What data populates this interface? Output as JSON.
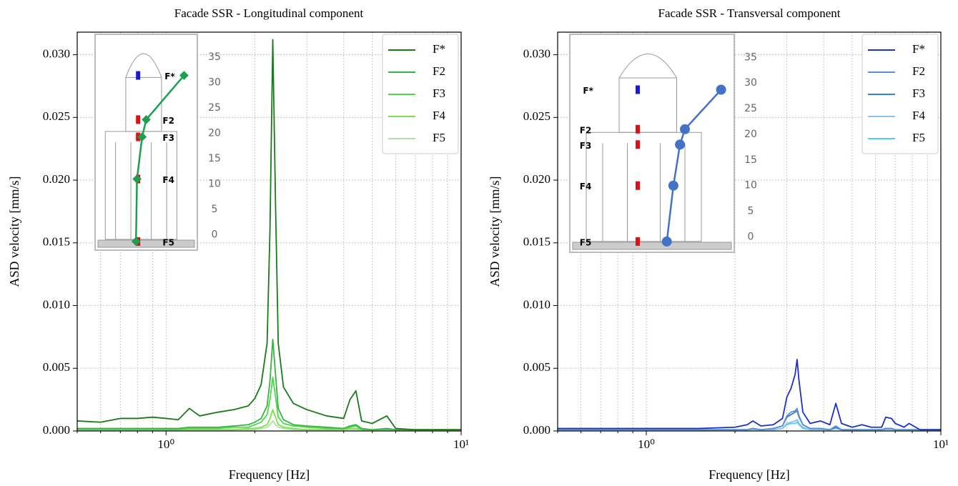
{
  "chart_data": [
    {
      "type": "line",
      "title": "Facade SSR - Longitudinal component",
      "xlabel": "Frequency [Hz]",
      "ylabel": "ASD velocity [mm/s]",
      "xscale": "log",
      "xlim": [
        0.5,
        10
      ],
      "xticks": [
        {
          "value": 1,
          "label": "10⁰"
        },
        {
          "value": 10,
          "label": "10¹"
        }
      ],
      "xminorticks": [
        0.5,
        0.6,
        0.7,
        0.8,
        0.9,
        2,
        3,
        4,
        5,
        6,
        7,
        8,
        9
      ],
      "ylim": [
        0,
        0.0318
      ],
      "yticks": [
        {
          "value": 0,
          "label": "0.000"
        },
        {
          "value": 0.005,
          "label": "0.005"
        },
        {
          "value": 0.01,
          "label": "0.010"
        },
        {
          "value": 0.015,
          "label": "0.015"
        },
        {
          "value": 0.02,
          "label": "0.020"
        },
        {
          "value": 0.025,
          "label": "0.025"
        },
        {
          "value": 0.03,
          "label": "0.030"
        }
      ],
      "grid": true,
      "legend": "upper right",
      "x": [
        0.5,
        0.6,
        0.7,
        0.8,
        0.9,
        1.0,
        1.1,
        1.2,
        1.3,
        1.5,
        1.7,
        1.9,
        2.0,
        2.1,
        2.2,
        2.25,
        2.3,
        2.35,
        2.4,
        2.5,
        2.7,
        3.0,
        3.5,
        4.0,
        4.2,
        4.4,
        4.6,
        5.0,
        5.6,
        6.0,
        7,
        8,
        10
      ],
      "series": [
        {
          "name": "F*",
          "color": "#1a7a1a",
          "values": [
            0.0008,
            0.0007,
            0.001,
            0.001,
            0.0011,
            0.001,
            0.0009,
            0.0018,
            0.0012,
            0.0015,
            0.0017,
            0.002,
            0.0026,
            0.0037,
            0.007,
            0.016,
            0.0312,
            0.018,
            0.007,
            0.0035,
            0.0022,
            0.0017,
            0.0012,
            0.001,
            0.0025,
            0.0032,
            0.0008,
            0.0006,
            0.0012,
            0.0002,
            0.0001,
            0.0001,
            0.0001
          ]
        },
        {
          "name": "F2",
          "color": "#3cb043",
          "values": [
            0.0002,
            0.0002,
            0.0002,
            0.0002,
            0.0002,
            0.0002,
            0.0002,
            0.0003,
            0.0003,
            0.0003,
            0.0004,
            0.0005,
            0.0007,
            0.001,
            0.002,
            0.004,
            0.0073,
            0.0045,
            0.0018,
            0.0009,
            0.0005,
            0.0004,
            0.0003,
            0.0002,
            0.0004,
            0.0005,
            0.0002,
            0.0001,
            0.0002,
            0.0001,
            0.0001,
            0.0001,
            0.0001
          ]
        },
        {
          "name": "F3",
          "color": "#4cd94c",
          "values": [
            0.0001,
            0.0001,
            0.0001,
            0.0001,
            0.0001,
            0.0001,
            0.0001,
            0.0002,
            0.0002,
            0.0002,
            0.0003,
            0.0003,
            0.0005,
            0.0007,
            0.0013,
            0.0025,
            0.0043,
            0.0027,
            0.0011,
            0.0006,
            0.0004,
            0.0003,
            0.0002,
            0.0002,
            0.0003,
            0.0004,
            0.0001,
            0.0001,
            0.0001,
            0.0001,
            0.0001,
            0.0001,
            0.0001
          ]
        },
        {
          "name": "F4",
          "color": "#7ee04a",
          "values": [
            0.0001,
            0.0001,
            0.0001,
            0.0001,
            0.0001,
            0.0001,
            0.0001,
            0.0001,
            0.0001,
            0.0001,
            0.0001,
            0.0002,
            0.0002,
            0.0003,
            0.0005,
            0.001,
            0.0017,
            0.0011,
            0.0005,
            0.0003,
            0.0002,
            0.0001,
            0.0001,
            0.0001,
            0.0002,
            0.0002,
            0.0001,
            0.0001,
            0.0001,
            0.0001,
            0.0001,
            0.0001,
            0.0001
          ]
        },
        {
          "name": "F5",
          "color": "#a8e6a0",
          "values": [
            0.0001,
            0.0001,
            0.0001,
            0.0001,
            0.0001,
            0.0001,
            0.0001,
            0.0001,
            0.0001,
            0.0001,
            0.0001,
            0.0001,
            0.0001,
            0.0002,
            0.0003,
            0.0005,
            0.0008,
            0.0005,
            0.0003,
            0.0002,
            0.0001,
            0.0001,
            0.0001,
            0.0001,
            0.0001,
            0.0001,
            0.0001,
            0.0001,
            0.0001,
            0.0001,
            0.0001,
            0.0001,
            0.0001
          ]
        }
      ],
      "inset": {
        "labels": [
          "F*",
          "F2",
          "F3",
          "F4",
          "F5"
        ],
        "label_colors": [
          "#1a1ad0",
          "#e01010",
          "#e01010",
          "#e01010",
          "#e01010"
        ],
        "ylim": [
          -3,
          39.5
        ],
        "yticks": [
          0,
          5,
          10,
          15,
          20,
          25,
          30,
          35
        ],
        "xlim": [
          0,
          1
        ],
        "mode_shape": {
          "color": "#1aa050",
          "marker": "diamond",
          "x": [
            0.87,
            0.5,
            0.46,
            0.41,
            0.4
          ],
          "y": [
            31.4,
            22.7,
            19.3,
            11,
            -1.3
          ]
        }
      }
    },
    {
      "type": "line",
      "title": "Facade SSR - Transversal component",
      "xlabel": "Frequency [Hz]",
      "ylabel": "ASD velocity [mm/s]",
      "xscale": "log",
      "xlim": [
        0.5,
        10
      ],
      "xticks": [
        {
          "value": 1,
          "label": "10⁰"
        },
        {
          "value": 10,
          "label": "10¹"
        }
      ],
      "xminorticks": [
        0.5,
        0.6,
        0.7,
        0.8,
        0.9,
        2,
        3,
        4,
        5,
        6,
        7,
        8,
        9
      ],
      "ylim": [
        0,
        0.0318
      ],
      "yticks": [
        {
          "value": 0,
          "label": "0.000"
        },
        {
          "value": 0.005,
          "label": "0.005"
        },
        {
          "value": 0.01,
          "label": "0.010"
        },
        {
          "value": 0.015,
          "label": "0.015"
        },
        {
          "value": 0.02,
          "label": "0.020"
        },
        {
          "value": 0.025,
          "label": "0.025"
        },
        {
          "value": 0.03,
          "label": "0.030"
        }
      ],
      "grid": true,
      "legend": "upper right",
      "x": [
        0.5,
        0.7,
        1.0,
        1.5,
        2.0,
        2.2,
        2.3,
        2.45,
        2.7,
        2.9,
        3.0,
        3.1,
        3.2,
        3.25,
        3.3,
        3.4,
        3.6,
        3.9,
        4.2,
        4.4,
        4.6,
        5.0,
        5.4,
        5.8,
        6.3,
        6.5,
        6.8,
        7.0,
        7.5,
        7.8,
        8.5,
        10
      ],
      "series": [
        {
          "name": "F*",
          "color": "#1f2fc8",
          "values": [
            0.0002,
            0.0002,
            0.0002,
            0.0002,
            0.0003,
            0.0005,
            0.0008,
            0.0004,
            0.0005,
            0.001,
            0.0027,
            0.0034,
            0.0045,
            0.0057,
            0.004,
            0.0015,
            0.0006,
            0.0008,
            0.0005,
            0.0022,
            0.0006,
            0.0003,
            0.0005,
            0.0003,
            0.0003,
            0.0011,
            0.001,
            0.0006,
            0.0003,
            0.0006,
            0.0001,
            0.0001
          ]
        },
        {
          "name": "F2",
          "color": "#5b8fd6",
          "values": [
            0.0001,
            0.0001,
            0.0001,
            0.0001,
            0.0001,
            0.0001,
            0.0002,
            0.0001,
            0.0002,
            0.0004,
            0.0012,
            0.0015,
            0.0016,
            0.0018,
            0.0012,
            0.0005,
            0.0002,
            0.0002,
            0.0001,
            0.0004,
            0.0001,
            0.0001,
            0.0001,
            0.0001,
            0.0001,
            0.0002,
            0.0002,
            0.0001,
            0.0001,
            0.0001,
            0.0001,
            0.0001
          ]
        },
        {
          "name": "F3",
          "color": "#3a80d0",
          "values": [
            0.0001,
            0.0001,
            0.0001,
            0.0001,
            0.0001,
            0.0001,
            0.0002,
            0.0001,
            0.0002,
            0.0004,
            0.0011,
            0.0013,
            0.0015,
            0.0016,
            0.0011,
            0.0005,
            0.0002,
            0.0002,
            0.0001,
            0.0003,
            0.0001,
            0.0001,
            0.0001,
            0.0001,
            0.0001,
            0.0002,
            0.0002,
            0.0001,
            0.0001,
            0.0001,
            0.0001,
            0.0001
          ]
        },
        {
          "name": "F4",
          "color": "#8cc2ee",
          "values": [
            0.0001,
            0.0001,
            0.0001,
            0.0001,
            0.0001,
            0.0001,
            0.0001,
            0.0001,
            0.0001,
            0.0002,
            0.0006,
            0.0007,
            0.0008,
            0.0009,
            0.0006,
            0.0003,
            0.0001,
            0.0001,
            0.0001,
            0.0002,
            0.0001,
            0.0001,
            0.0001,
            0.0001,
            0.0001,
            0.0001,
            0.0001,
            0.0001,
            0.0001,
            0.0001,
            0.0001,
            0.0001
          ]
        },
        {
          "name": "F5",
          "color": "#4fd0e8",
          "values": [
            0.0001,
            0.0001,
            0.0001,
            0.0001,
            0.0001,
            0.0001,
            0.0001,
            0.0001,
            0.0001,
            0.0002,
            0.0005,
            0.0006,
            0.0006,
            0.0007,
            0.0005,
            0.0002,
            0.0001,
            0.0001,
            0.0001,
            0.0002,
            0.0001,
            0.0001,
            0.0001,
            0.0001,
            0.0001,
            0.0001,
            0.0001,
            0.0001,
            0.0001,
            0.0001,
            0.0001,
            0.0001
          ]
        }
      ],
      "inset": {
        "labels": [
          "F*",
          "F2",
          "F3",
          "F4",
          "F5"
        ],
        "label_colors": [
          "#1a1ad0",
          "#e01010",
          "#e01010",
          "#e01010",
          "#e01010"
        ],
        "ylim": [
          -3,
          39.5
        ],
        "yticks": [
          0,
          5,
          10,
          15,
          20,
          25,
          30,
          35
        ],
        "xlim": [
          0,
          1
        ],
        "mode_shape": {
          "color": "#4472c4",
          "marker": "circle",
          "x": [
            0.92,
            0.7,
            0.67,
            0.63,
            0.59
          ],
          "y": [
            28.7,
            21,
            18,
            10,
            -0.9
          ]
        }
      }
    }
  ]
}
